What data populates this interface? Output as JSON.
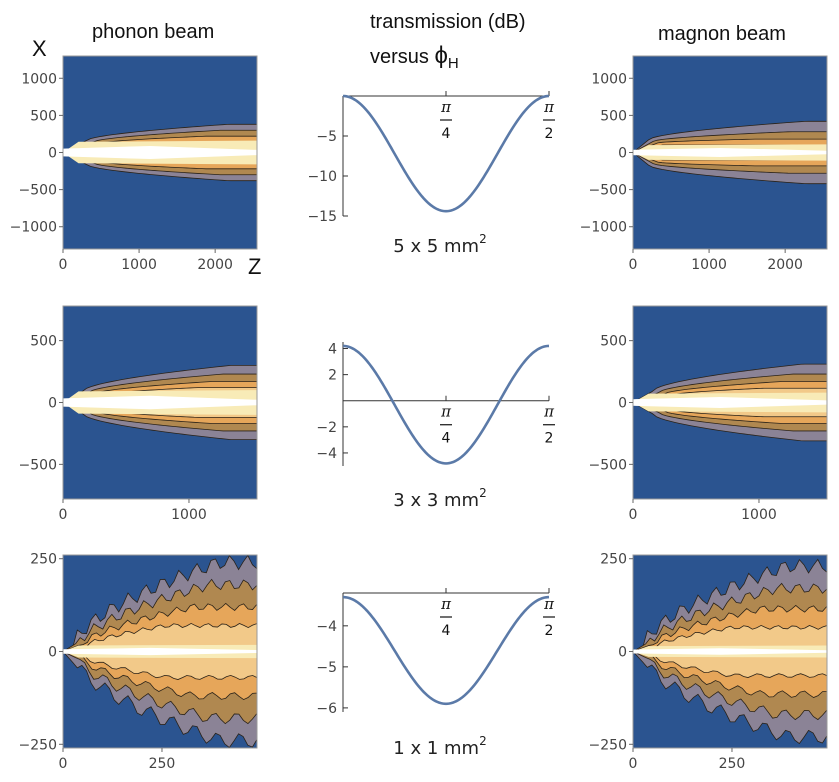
{
  "headers": {
    "left": "phonon beam",
    "middle_line1": "transmission (dB)",
    "middle_line2_prefix": "versus ",
    "middle_phi": "ϕ",
    "middle_sub": "H",
    "right": "magnon beam",
    "x_axis_label": "X",
    "z_axis_label": "Z"
  },
  "colors": {
    "background_blue": "#2b5490",
    "gray": "#8b8396",
    "dark_tan": "#b08850",
    "orange": "#e6a65a",
    "light_orange": "#f2c989",
    "pale_yellow": "#f8ebb7",
    "white": "#ffffff",
    "curve": "#5b7aa8"
  },
  "chart_data": [
    {
      "type": "heatmap",
      "panel": "phonon-beam-5x5",
      "title": "phonon beam",
      "xlabel": "Z",
      "ylabel": "X",
      "xlim": [
        0,
        2550
      ],
      "ylim": [
        -1300,
        1300
      ],
      "xticks": [
        0,
        1000,
        2000
      ],
      "xtick_labels": [
        "0",
        "1000",
        "2000"
      ],
      "yticks": [
        1000,
        500,
        0,
        -500,
        -1000
      ],
      "ytick_labels": [
        "1000",
        "500",
        "0",
        "−500",
        "−1000"
      ],
      "beam_halfwidths": [
        380,
        300,
        220,
        140
      ],
      "beam_start_halfwidth": 160,
      "beam_spread": 0.05,
      "beam_nose": 0.12,
      "core_halfwidth": 160
    },
    {
      "type": "line",
      "panel": "transmission-5x5",
      "label": "5 x 5 mm",
      "label_sup": "2",
      "xlim": [
        0,
        1.5708
      ],
      "ylim": [
        -15,
        0
      ],
      "axis_crossing_y": 0,
      "yticks": [
        -5,
        -10,
        -15
      ],
      "ytick_labels": [
        "−5",
        "−10",
        "−15"
      ],
      "xticks": [
        0.7854,
        1.5708
      ],
      "xtick_labels": [
        {
          "num": "π",
          "den": "4"
        },
        {
          "num": "π",
          "den": "2"
        }
      ],
      "curve": {
        "offset": -7.2,
        "amplitude": 7.2
      }
    },
    {
      "type": "heatmap",
      "panel": "magnon-beam-5x5",
      "title": "magnon beam",
      "xlim": [
        0,
        2550
      ],
      "ylim": [
        -1300,
        1300
      ],
      "xticks": [
        0,
        1000,
        2000
      ],
      "xtick_labels": [
        "0",
        "1000",
        "2000"
      ],
      "yticks": [
        1000,
        500,
        0,
        -500,
        -1000
      ],
      "ytick_labels": [
        "1000",
        "500",
        "0",
        "−500",
        "−1000"
      ],
      "beam_halfwidths": [
        420,
        280,
        180,
        100
      ],
      "beam_start_halfwidth": 170,
      "beam_spread": 0.04,
      "beam_nose": 0.08,
      "core_halfwidth": 110
    },
    {
      "type": "heatmap",
      "panel": "phonon-beam-3x3",
      "xlim": [
        0,
        1540
      ],
      "ylim": [
        -780,
        780
      ],
      "xticks": [
        0,
        1000
      ],
      "xtick_labels": [
        "0",
        "1000"
      ],
      "yticks": [
        500,
        0,
        -500
      ],
      "ytick_labels": [
        "500",
        "0",
        "−500"
      ],
      "beam_halfwidths": [
        300,
        230,
        170,
        120
      ],
      "beam_start_halfwidth": 90,
      "beam_spread": 0.07,
      "beam_nose": 0.1,
      "core_halfwidth": 100
    },
    {
      "type": "line",
      "panel": "transmission-3x3",
      "label": "3 x 3 mm",
      "label_sup": "2",
      "xlim": [
        0,
        1.5708
      ],
      "ylim": [
        -5,
        4.5
      ],
      "axis_crossing_y": 0,
      "yticks": [
        4,
        2,
        -2,
        -4
      ],
      "ytick_labels": [
        "4",
        "2",
        "−2",
        "−4"
      ],
      "xticks": [
        0.7854,
        1.5708
      ],
      "xtick_labels": [
        {
          "num": "π",
          "den": "4"
        },
        {
          "num": "π",
          "den": "2"
        }
      ],
      "curve": {
        "offset": -0.3,
        "amplitude": 4.5
      }
    },
    {
      "type": "heatmap",
      "panel": "magnon-beam-3x3",
      "xlim": [
        0,
        1540
      ],
      "ylim": [
        -780,
        780
      ],
      "xticks": [
        0,
        1000
      ],
      "xtick_labels": [
        "0",
        "1000"
      ],
      "yticks": [
        500,
        0,
        -500
      ],
      "ytick_labels": [
        "500",
        "0",
        "−500"
      ],
      "beam_halfwidths": [
        310,
        230,
        170,
        115
      ],
      "beam_start_halfwidth": 90,
      "beam_spread": 0.07,
      "beam_nose": 0.1,
      "core_halfwidth": 80
    },
    {
      "type": "heatmap",
      "panel": "phonon-beam-1x1",
      "xlim": [
        0,
        490
      ],
      "ylim": [
        -260,
        260
      ],
      "xticks": [
        0,
        250
      ],
      "xtick_labels": [
        "0",
        "250"
      ],
      "yticks": [
        250,
        0,
        -250
      ],
      "ytick_labels": [
        "250",
        "0",
        "−250"
      ],
      "beam_halfwidths": [
        240,
        180,
        120,
        70
      ],
      "beam_start_halfwidth": 10,
      "beam_spread": 0.35,
      "beam_nose": 0.05,
      "core_halfwidth": 18
    },
    {
      "type": "line",
      "panel": "transmission-1x1",
      "label": "1 x 1 mm",
      "label_sup": "2",
      "xlim": [
        0,
        1.5708
      ],
      "ylim": [
        -6.1,
        -3.2
      ],
      "axis_crossing_y": -3.2,
      "yticks": [
        -4,
        -5,
        -6
      ],
      "ytick_labels": [
        "−4",
        "−5",
        "−6"
      ],
      "xticks": [
        0.7854,
        1.5708
      ],
      "xtick_labels": [
        {
          "num": "π",
          "den": "4"
        },
        {
          "num": "π",
          "den": "2"
        }
      ],
      "curve": {
        "offset": -4.6,
        "amplitude": 1.3
      }
    },
    {
      "type": "heatmap",
      "panel": "magnon-beam-1x1",
      "xlim": [
        0,
        490
      ],
      "ylim": [
        -260,
        260
      ],
      "xticks": [
        0,
        250
      ],
      "xtick_labels": [
        "0",
        "250"
      ],
      "yticks": [
        250,
        0,
        -250
      ],
      "ytick_labels": [
        "250",
        "0",
        "−250"
      ],
      "beam_halfwidths": [
        230,
        170,
        115,
        65
      ],
      "beam_start_halfwidth": 10,
      "beam_spread": 0.35,
      "beam_nose": 0.05,
      "core_halfwidth": 16
    }
  ]
}
